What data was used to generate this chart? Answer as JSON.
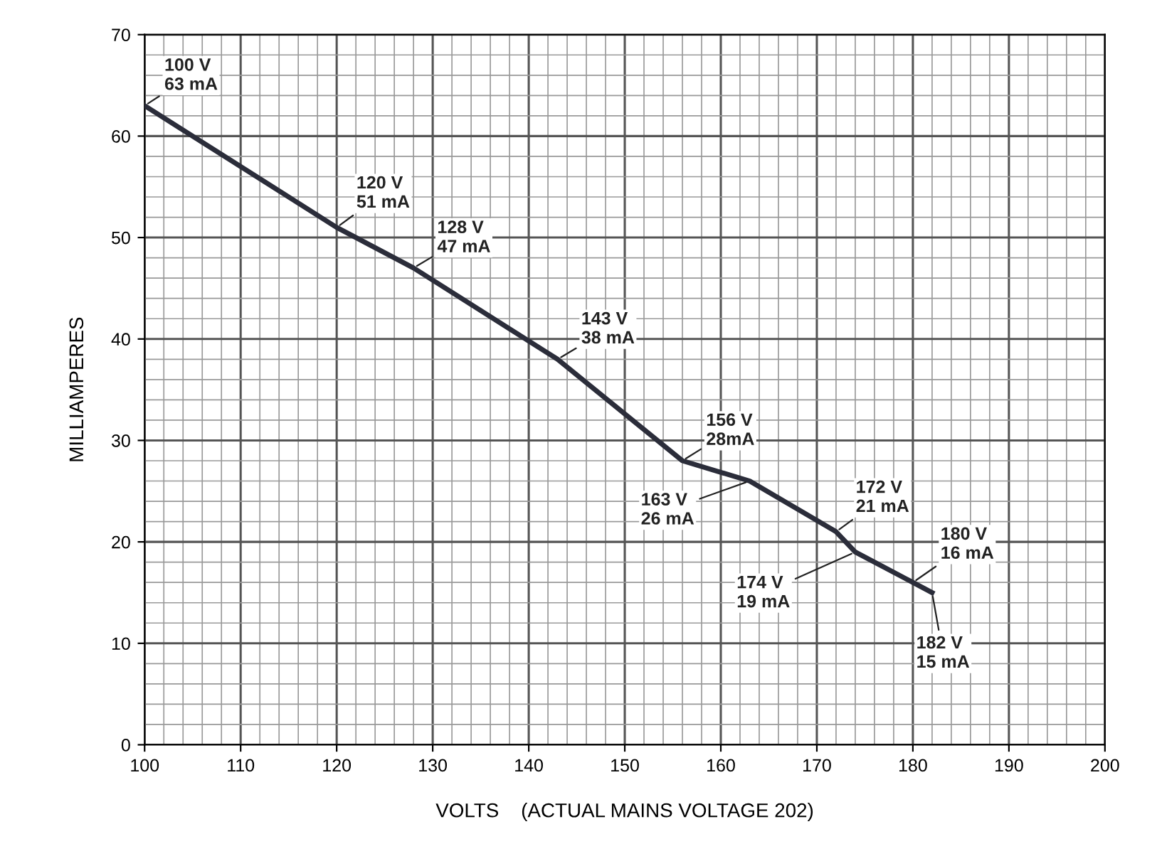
{
  "chart_data": {
    "type": "line",
    "xlabel": "VOLTS    (ACTUAL MAINS VOLTAGE 202)",
    "ylabel": "MILLIAMPERES",
    "x": [
      100,
      120,
      128,
      143,
      156,
      163,
      172,
      174,
      180,
      182
    ],
    "series": [
      {
        "color": "#2b2d3a",
        "values": [
          63,
          51,
          47,
          38,
          28,
          26,
          21,
          19,
          16,
          15
        ]
      }
    ],
    "xlim": [
      100,
      200
    ],
    "xticks": [
      100,
      110,
      120,
      130,
      140,
      150,
      160,
      170,
      180,
      190,
      200
    ],
    "ylim": [
      0,
      70
    ],
    "yticks": [
      0,
      10,
      20,
      30,
      40,
      50,
      60,
      70
    ],
    "grid": true,
    "marker": "none",
    "line_style": "solid",
    "annotations": [
      {
        "text": "100 V\n63 mA",
        "x": 100,
        "y": 63
      },
      {
        "text": "120 V\n51 mA",
        "x": 120,
        "y": 51
      },
      {
        "text": "128 V\n47 mA",
        "x": 128,
        "y": 47
      },
      {
        "text": "143 V\n38 mA",
        "x": 143,
        "y": 38
      },
      {
        "text": "156 V\n28mA",
        "x": 156,
        "y": 28
      },
      {
        "text": "163 V\n26 mA",
        "x": 163,
        "y": 26
      },
      {
        "text": "172 V\n21 mA",
        "x": 172,
        "y": 21
      },
      {
        "text": "174 V\n19 mA",
        "x": 174,
        "y": 19
      },
      {
        "text": "180 V\n16 mA",
        "x": 180,
        "y": 16
      },
      {
        "text": "182 V\n15 mA",
        "x": 182,
        "y": 15
      }
    ]
  }
}
